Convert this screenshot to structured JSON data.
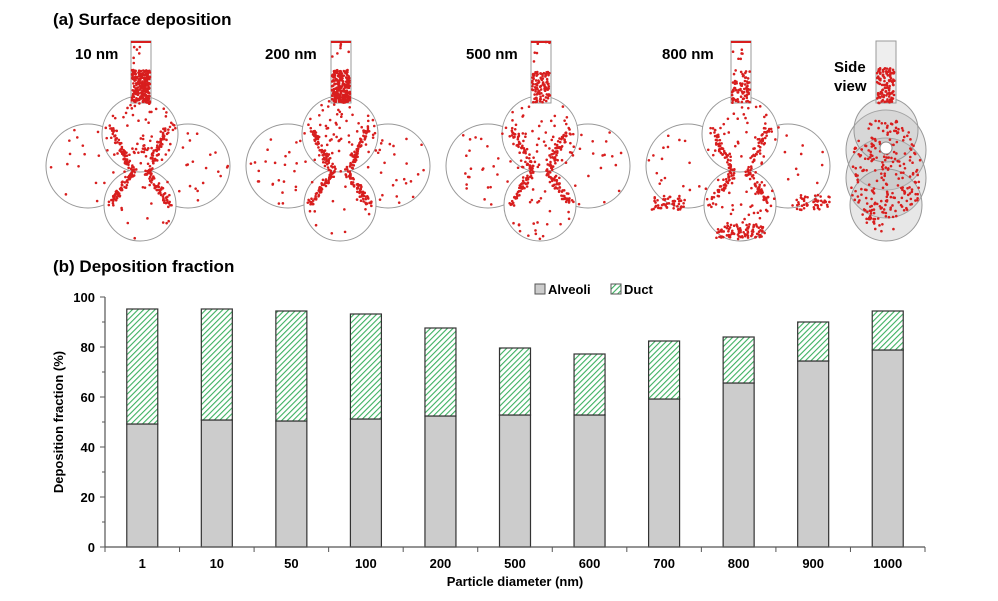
{
  "panel_a": {
    "title": "(a) Surface deposition",
    "panels": [
      {
        "label": "10 nm"
      },
      {
        "label": "200 nm"
      },
      {
        "label": "500 nm"
      },
      {
        "label": "800 nm"
      },
      {
        "label": "Side view"
      }
    ]
  },
  "panel_b": {
    "title": "(b) Deposition fraction"
  },
  "colors": {
    "particle": "#d81e1e",
    "alveoli": "#cccccc",
    "duct": "#3cb060"
  },
  "chart_data": {
    "type": "bar",
    "stacked": true,
    "categories": [
      "1",
      "10",
      "50",
      "100",
      "200",
      "500",
      "600",
      "700",
      "800",
      "900",
      "1000"
    ],
    "series": [
      {
        "name": "Alveoli",
        "values": [
          49.2,
          50.8,
          50.4,
          51.2,
          52.4,
          52.8,
          52.8,
          59.2,
          65.6,
          74.4,
          78.8
        ]
      },
      {
        "name": "Duct",
        "values": [
          46.0,
          44.4,
          44.0,
          42.0,
          35.2,
          26.8,
          24.4,
          23.2,
          18.4,
          15.6,
          15.6
        ]
      }
    ],
    "xlabel": "Particle diameter (nm)",
    "ylabel": "Deposition fraction (%)",
    "ylim": [
      0,
      100
    ],
    "yticks": [
      "0",
      "20",
      "40",
      "60",
      "80",
      "100"
    ],
    "legend": "top-center",
    "grid": false
  }
}
